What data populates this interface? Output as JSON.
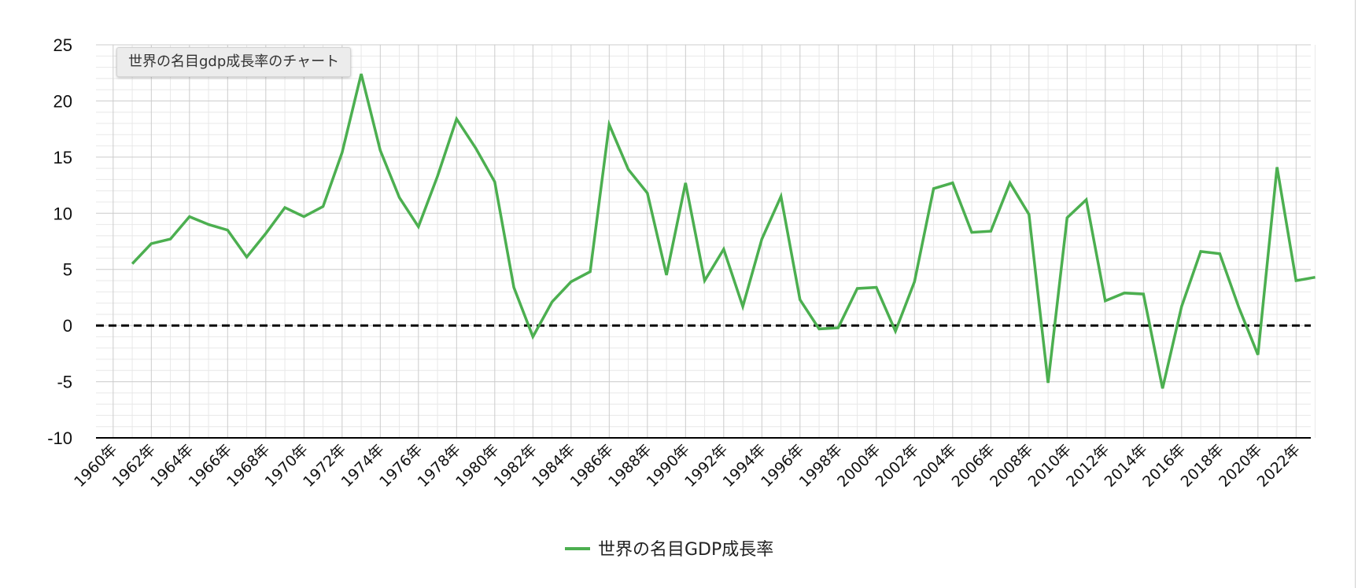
{
  "tooltip": "世界の名目gdp成長率のチャート",
  "legend": {
    "label": "世界の名目GDP成長率"
  },
  "colors": {
    "series": "#4caf50",
    "zero_line": "#000000",
    "grid_major": "#cccccc",
    "grid_minor": "#e8e8e8",
    "axis": "#000000"
  },
  "chart_data": {
    "type": "line",
    "xlabel": "",
    "ylabel": "",
    "ylim": [
      -10,
      25
    ],
    "yticks": [
      -10,
      -5,
      0,
      5,
      10,
      15,
      20,
      25
    ],
    "grid": true,
    "legend_position": "bottom",
    "x_tick_labels": [
      "1960年",
      "1962年",
      "1964年",
      "1966年",
      "1968年",
      "1970年",
      "1972年",
      "1974年",
      "1976年",
      "1978年",
      "1980年",
      "1982年",
      "1984年",
      "1986年",
      "1988年",
      "1990年",
      "1992年",
      "1994年",
      "1996年",
      "1998年",
      "2000年",
      "2002年",
      "2004年",
      "2006年",
      "2008年",
      "2010年",
      "2012年",
      "2014年",
      "2016年",
      "2018年",
      "2020年",
      "2022年"
    ],
    "reference_line": {
      "y": 0,
      "style": "dashed"
    },
    "series": [
      {
        "name": "世界の名目GDP成長率",
        "x": [
          1961,
          1962,
          1963,
          1964,
          1965,
          1966,
          1967,
          1968,
          1969,
          1970,
          1971,
          1972,
          1973,
          1974,
          1975,
          1976,
          1977,
          1978,
          1979,
          1980,
          1981,
          1982,
          1983,
          1984,
          1985,
          1986,
          1987,
          1988,
          1989,
          1990,
          1991,
          1992,
          1993,
          1994,
          1995,
          1996,
          1997,
          1998,
          1999,
          2000,
          2001,
          2002,
          2003,
          2004,
          2005,
          2006,
          2007,
          2008,
          2009,
          2010,
          2011,
          2012,
          2013,
          2014,
          2015,
          2016,
          2017,
          2018,
          2019,
          2020,
          2021,
          2022,
          2023
        ],
        "values": [
          5.5,
          7.3,
          7.7,
          9.7,
          9.0,
          8.5,
          6.1,
          8.2,
          10.5,
          9.7,
          10.6,
          15.4,
          22.4,
          15.6,
          11.4,
          8.8,
          13.3,
          18.4,
          15.8,
          12.8,
          3.4,
          -1.0,
          2.1,
          3.9,
          4.8,
          17.9,
          13.9,
          11.8,
          4.5,
          12.7,
          4.0,
          6.8,
          1.7,
          7.7,
          11.5,
          2.3,
          -0.3,
          -0.2,
          3.3,
          3.4,
          -0.5,
          3.9,
          12.2,
          12.7,
          8.3,
          8.4,
          12.7,
          9.9,
          -5.1,
          9.6,
          11.2,
          2.2,
          2.9,
          2.8,
          -5.6,
          1.7,
          6.6,
          6.4,
          1.6,
          -2.6,
          14.1,
          4.0,
          4.3
        ]
      }
    ]
  }
}
